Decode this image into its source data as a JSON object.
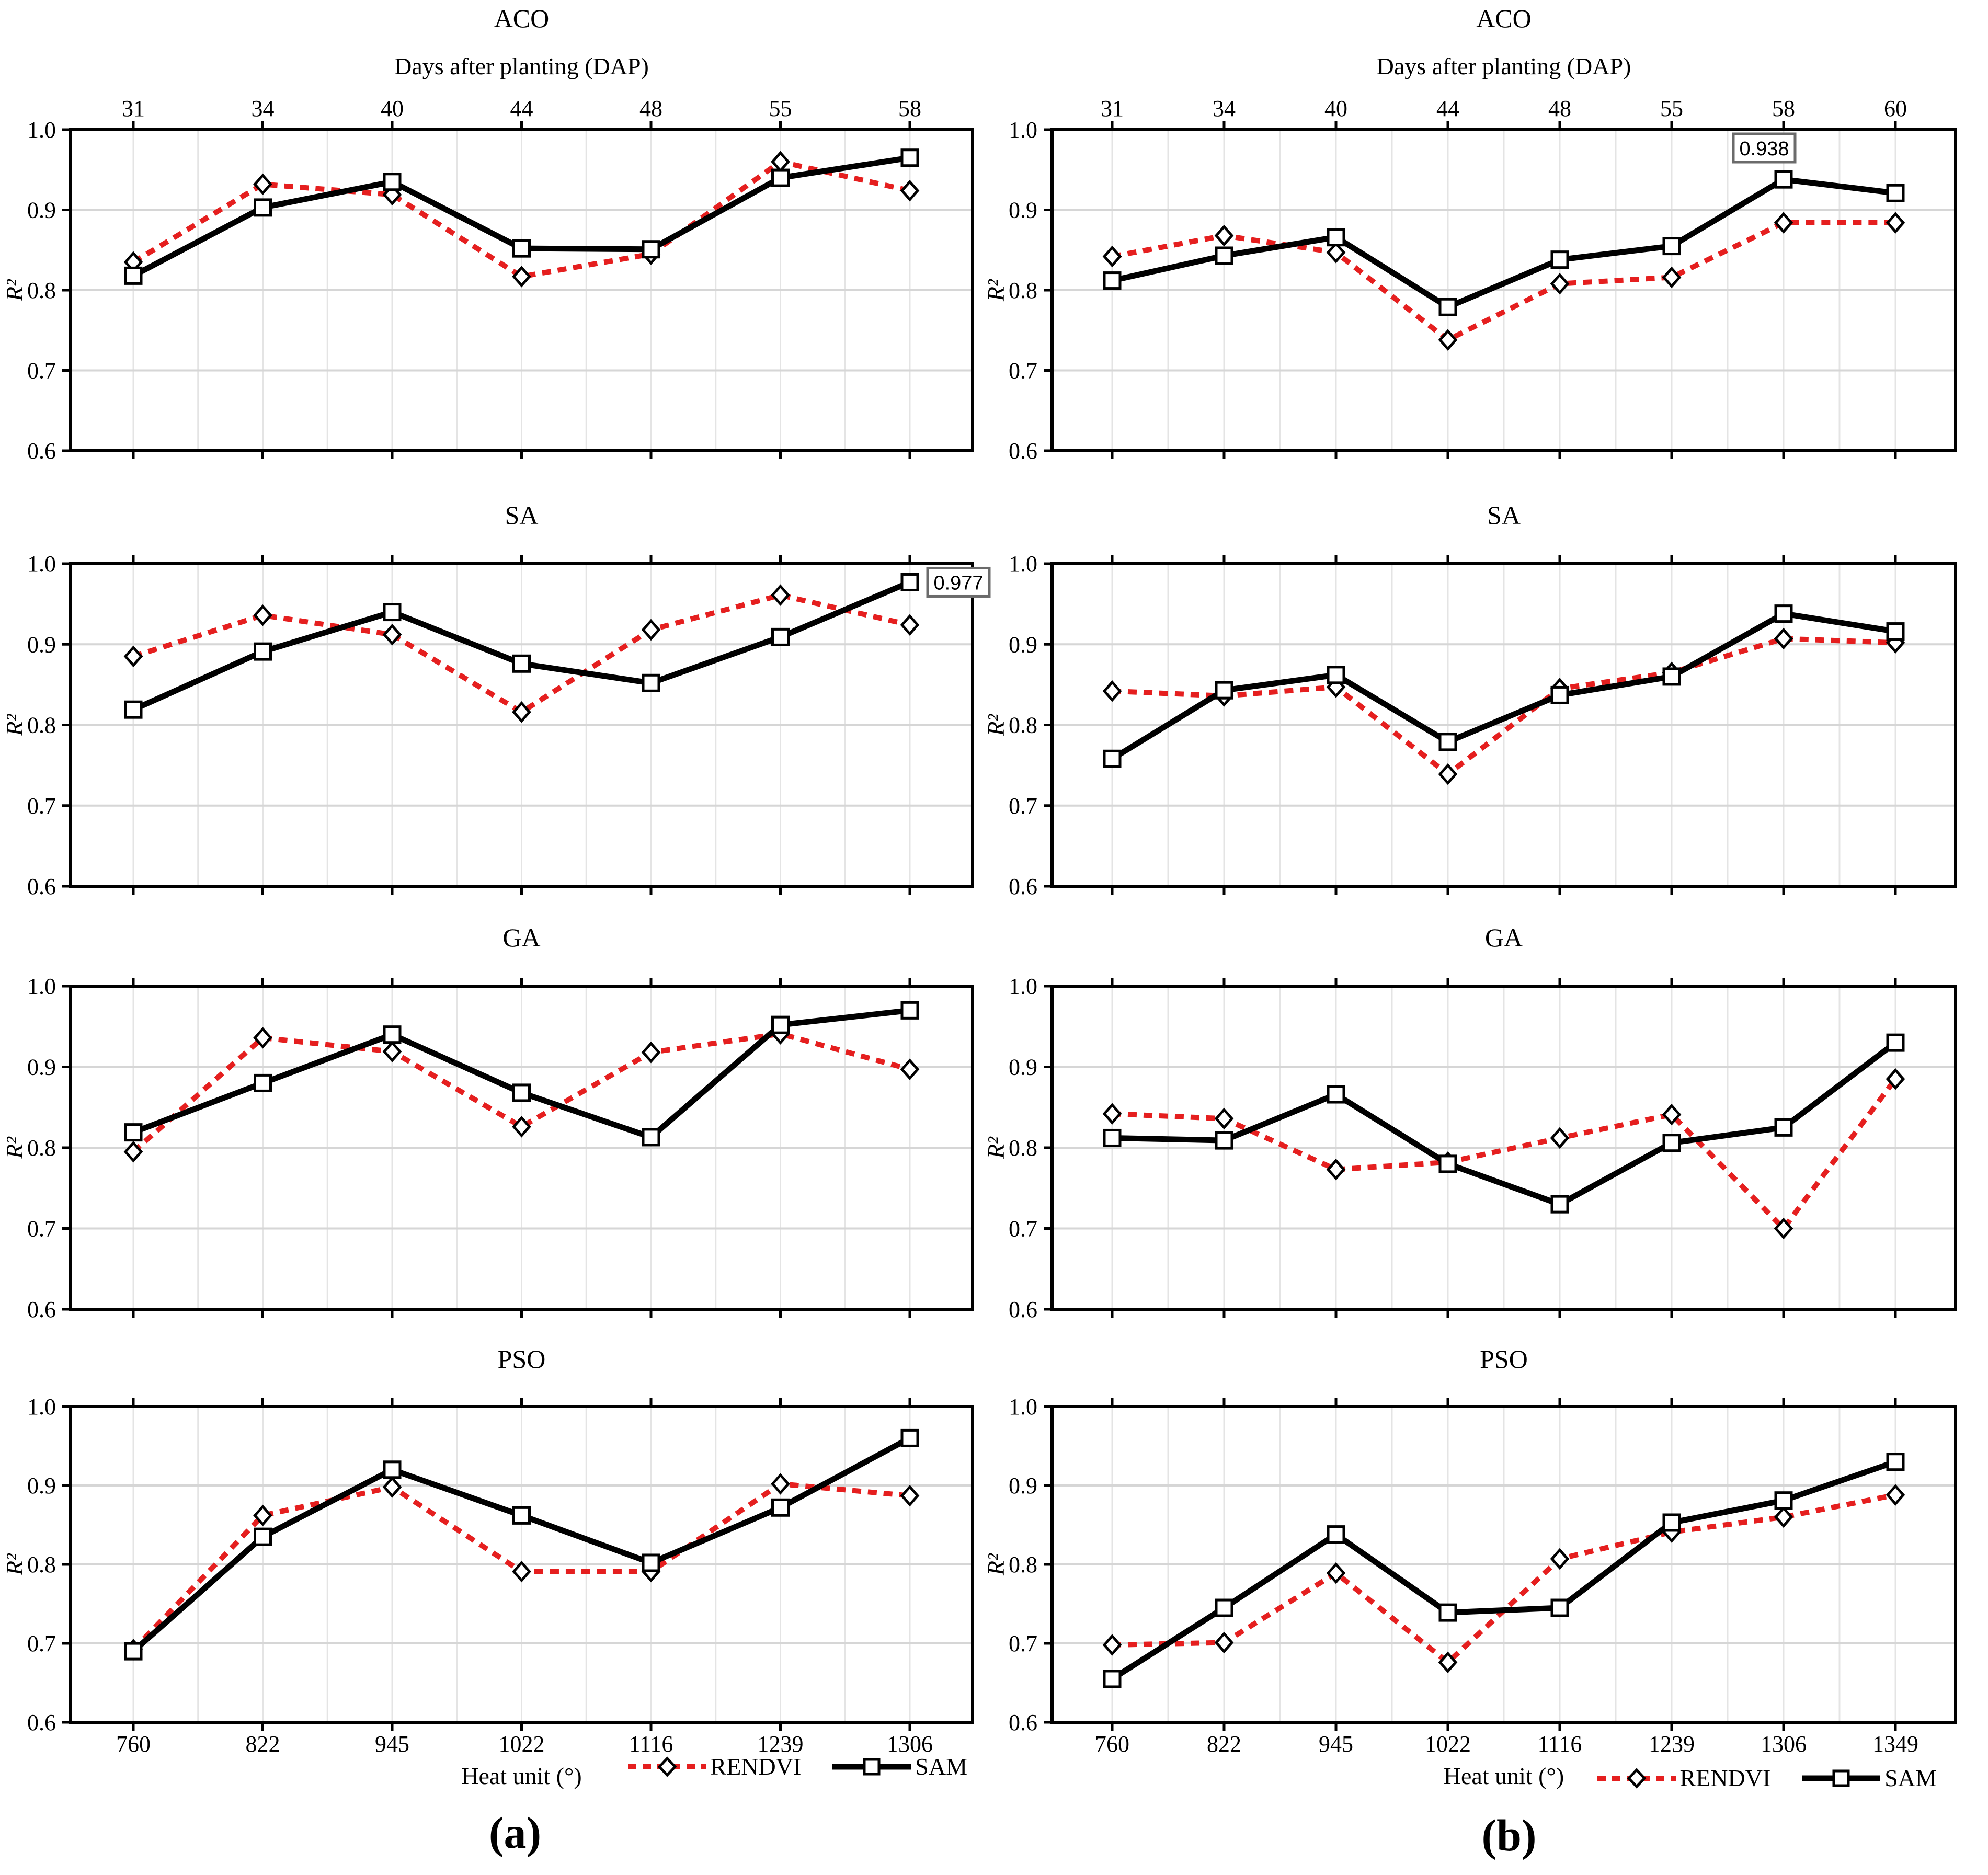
{
  "figure": {
    "captions": {
      "a": "(a)",
      "b": "(b)"
    },
    "legend": {
      "rendvi": "RENDVI",
      "sam": "SAM"
    },
    "colors": {
      "rendvi": "#e51f1f",
      "sam": "#000000",
      "grid_minor": "#e4e4e4",
      "grid_major": "#d6d6d6",
      "frame": "#000000",
      "annotation_border": "#6b6b6b",
      "background": "#ffffff"
    },
    "axis": {
      "y_label": "R²",
      "x_label": "Heat unit (°)",
      "top_label": "Days after planting (DAP)",
      "ylim": [
        0.6,
        1.0
      ],
      "ytick_labels": [
        "1.0",
        "0.9",
        "0.8",
        "0.7",
        "0.6"
      ],
      "ytick_values": [
        1.0,
        0.9,
        0.8,
        0.7,
        0.6
      ],
      "grid": true,
      "legend_position": "bottom-right"
    }
  },
  "chart_data": [
    {
      "id": "aco-a",
      "type": "line",
      "column": "a",
      "row": 0,
      "title": "ACO",
      "top_axis_labels": [
        "31",
        "34",
        "40",
        "44",
        "48",
        "55",
        "58"
      ],
      "categories": [
        "760",
        "822",
        "945",
        "1022",
        "1116",
        "1239",
        "1306"
      ],
      "show_x_tick_labels": false,
      "show_top_axis": true,
      "show_x_label": false,
      "show_legend": false,
      "series": [
        {
          "name": "RENDVI",
          "values": [
            0.835,
            0.932,
            0.919,
            0.817,
            0.845,
            0.96,
            0.924
          ]
        },
        {
          "name": "SAM",
          "values": [
            0.818,
            0.903,
            0.935,
            0.852,
            0.851,
            0.94,
            0.965
          ]
        }
      ],
      "annotation": null
    },
    {
      "id": "sa-a",
      "type": "line",
      "column": "a",
      "row": 1,
      "title": "SA",
      "top_axis_labels": null,
      "categories": [
        "760",
        "822",
        "945",
        "1022",
        "1116",
        "1239",
        "1306"
      ],
      "show_x_tick_labels": false,
      "show_top_axis": false,
      "show_x_label": false,
      "show_legend": false,
      "series": [
        {
          "name": "RENDVI",
          "values": [
            0.885,
            0.936,
            0.912,
            0.816,
            0.918,
            0.961,
            0.924
          ]
        },
        {
          "name": "SAM",
          "values": [
            0.819,
            0.891,
            0.94,
            0.876,
            0.852,
            0.909,
            0.977
          ]
        }
      ],
      "annotation": {
        "text": "0.977",
        "series": "SAM",
        "index": 6,
        "placement": "right"
      }
    },
    {
      "id": "ga-a",
      "type": "line",
      "column": "a",
      "row": 2,
      "title": "GA",
      "top_axis_labels": null,
      "categories": [
        "760",
        "822",
        "945",
        "1022",
        "1116",
        "1239",
        "1306"
      ],
      "show_x_tick_labels": false,
      "show_top_axis": false,
      "show_x_label": false,
      "show_legend": false,
      "series": [
        {
          "name": "RENDVI",
          "values": [
            0.795,
            0.936,
            0.919,
            0.826,
            0.918,
            0.941,
            0.897
          ]
        },
        {
          "name": "SAM",
          "values": [
            0.819,
            0.88,
            0.94,
            0.868,
            0.813,
            0.952,
            0.97
          ]
        }
      ],
      "annotation": null
    },
    {
      "id": "pso-a",
      "type": "line",
      "column": "a",
      "row": 3,
      "title": "PSO",
      "top_axis_labels": null,
      "categories": [
        "760",
        "822",
        "945",
        "1022",
        "1116",
        "1239",
        "1306"
      ],
      "show_x_tick_labels": true,
      "show_top_axis": false,
      "show_x_label": true,
      "show_legend": true,
      "series": [
        {
          "name": "RENDVI",
          "values": [
            0.692,
            0.862,
            0.898,
            0.791,
            0.791,
            0.902,
            0.887
          ]
        },
        {
          "name": "SAM",
          "values": [
            0.69,
            0.835,
            0.92,
            0.862,
            0.802,
            0.872,
            0.96
          ]
        }
      ],
      "annotation": null
    },
    {
      "id": "aco-b",
      "type": "line",
      "column": "b",
      "row": 0,
      "title": "ACO",
      "top_axis_labels": [
        "31",
        "34",
        "40",
        "44",
        "48",
        "55",
        "58",
        "60"
      ],
      "categories": [
        "760",
        "822",
        "945",
        "1022",
        "1116",
        "1239",
        "1306",
        "1349"
      ],
      "show_x_tick_labels": false,
      "show_top_axis": true,
      "show_x_label": false,
      "show_legend": false,
      "series": [
        {
          "name": "RENDVI",
          "values": [
            0.842,
            0.868,
            0.847,
            0.738,
            0.808,
            0.816,
            0.884,
            0.884
          ]
        },
        {
          "name": "SAM",
          "values": [
            0.812,
            0.843,
            0.866,
            0.779,
            0.838,
            0.855,
            0.938,
            0.921
          ]
        }
      ],
      "annotation": {
        "text": "0.938",
        "series": "SAM",
        "index": 6,
        "placement": "above"
      }
    },
    {
      "id": "sa-b",
      "type": "line",
      "column": "b",
      "row": 1,
      "title": "SA",
      "top_axis_labels": null,
      "categories": [
        "760",
        "822",
        "945",
        "1022",
        "1116",
        "1239",
        "1306",
        "1349"
      ],
      "show_x_tick_labels": false,
      "show_top_axis": false,
      "show_x_label": false,
      "show_legend": false,
      "series": [
        {
          "name": "RENDVI",
          "values": [
            0.842,
            0.836,
            0.847,
            0.739,
            0.845,
            0.865,
            0.907,
            0.902
          ]
        },
        {
          "name": "SAM",
          "values": [
            0.758,
            0.843,
            0.862,
            0.779,
            0.837,
            0.86,
            0.938,
            0.916
          ]
        }
      ],
      "annotation": null
    },
    {
      "id": "ga-b",
      "type": "line",
      "column": "b",
      "row": 2,
      "title": "GA",
      "top_axis_labels": null,
      "categories": [
        "760",
        "822",
        "945",
        "1022",
        "1116",
        "1239",
        "1306",
        "1349"
      ],
      "show_x_tick_labels": false,
      "show_top_axis": false,
      "show_x_label": false,
      "show_legend": false,
      "series": [
        {
          "name": "RENDVI",
          "values": [
            0.842,
            0.836,
            0.773,
            0.782,
            0.812,
            0.841,
            0.7,
            0.885
          ]
        },
        {
          "name": "SAM",
          "values": [
            0.812,
            0.809,
            0.866,
            0.78,
            0.73,
            0.806,
            0.825,
            0.93
          ]
        }
      ],
      "annotation": null
    },
    {
      "id": "pso-b",
      "type": "line",
      "column": "b",
      "row": 3,
      "title": "PSO",
      "top_axis_labels": null,
      "categories": [
        "760",
        "822",
        "945",
        "1022",
        "1116",
        "1239",
        "1306",
        "1349"
      ],
      "show_x_tick_labels": true,
      "show_top_axis": false,
      "show_x_label": true,
      "show_legend": true,
      "series": [
        {
          "name": "RENDVI",
          "values": [
            0.698,
            0.701,
            0.789,
            0.676,
            0.807,
            0.841,
            0.86,
            0.888
          ]
        },
        {
          "name": "SAM",
          "values": [
            0.655,
            0.745,
            0.838,
            0.739,
            0.745,
            0.853,
            0.881,
            0.93
          ]
        }
      ],
      "annotation": null
    }
  ]
}
